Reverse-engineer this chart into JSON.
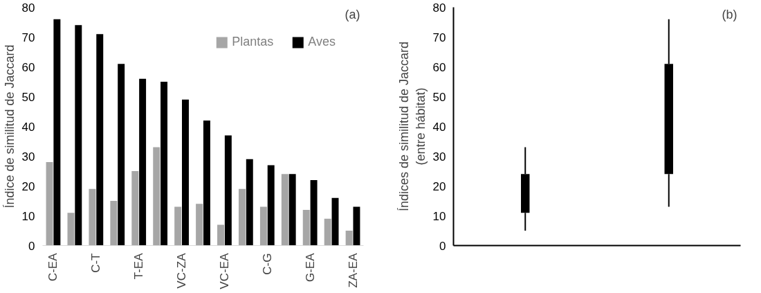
{
  "chart_data": [
    {
      "type": "bar",
      "annotations": [
        "(a)"
      ],
      "ylabel": "Índice de similitud de Jaccard",
      "categories": [
        "C-EA",
        null,
        "C-T",
        null,
        "T-EA",
        null,
        "VC-ZA",
        null,
        "VC-EA",
        null,
        "C-G",
        null,
        "G-EA",
        null,
        "ZA-EA"
      ],
      "series": [
        {
          "name": "Plantas",
          "color": "#a6a6a6",
          "values": [
            28,
            11,
            19,
            15,
            25,
            33,
            13,
            14,
            7,
            19,
            13,
            24,
            12,
            9,
            5
          ]
        },
        {
          "name": "Aves",
          "color": "#000000",
          "values": [
            76,
            74,
            71,
            61,
            56,
            55,
            49,
            42,
            37,
            29,
            27,
            24,
            22,
            16,
            13
          ]
        }
      ],
      "ylim": [
        0,
        80
      ],
      "yticks": [
        0,
        10,
        20,
        30,
        40,
        50,
        60,
        70,
        80
      ],
      "legend": "top right",
      "grid": false
    },
    {
      "type": "box",
      "annotations": [
        "(b)"
      ],
      "ylabel": "Índices de similitud de Jaccard\n(entre hábitat)",
      "categories": [
        null,
        null
      ],
      "color": "#000000",
      "boxes": [
        {
          "low": 5,
          "q1": 11,
          "q3": 24,
          "high": 33
        },
        {
          "low": 13,
          "q1": 24,
          "q3": 61,
          "high": 76
        }
      ],
      "ylim": [
        0,
        80
      ],
      "yticks": [
        0,
        10,
        20,
        30,
        40,
        50,
        60,
        70,
        80
      ],
      "grid": false
    }
  ]
}
